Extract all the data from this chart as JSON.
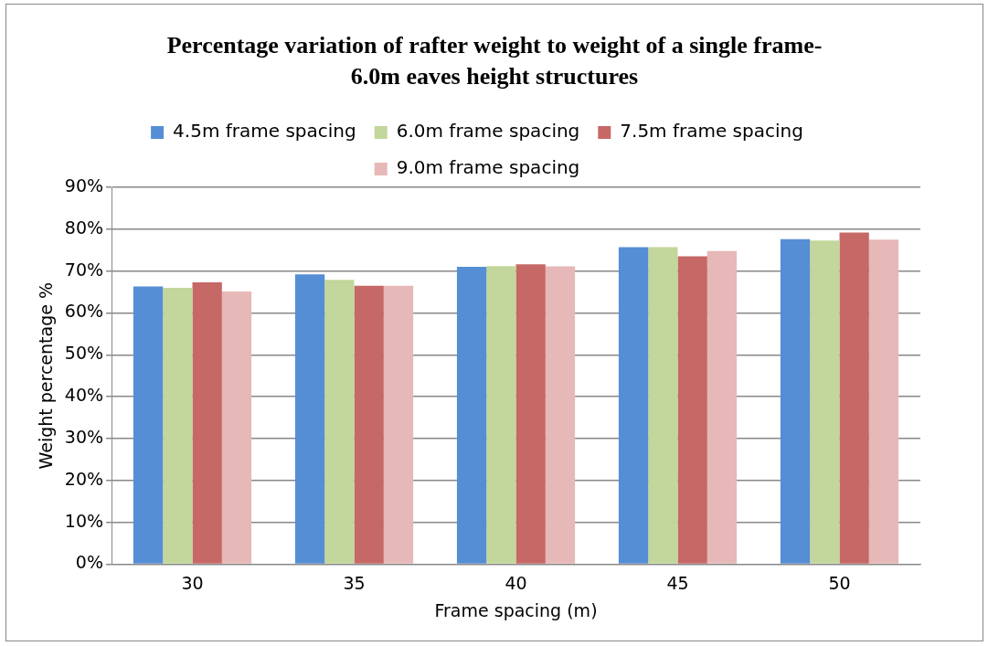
{
  "chart_data": {
    "type": "bar",
    "title": "Percentage variation of  rafter weight to weight of a single frame- 6.0m eaves height structures",
    "xlabel": "Frame spacing (m)",
    "ylabel": "Weight percentage %",
    "categories": [
      "30",
      "35",
      "40",
      "45",
      "50"
    ],
    "series": [
      {
        "name": "4.5m frame spacing",
        "color": "#558ed5",
        "values": [
          66.3,
          69.2,
          71.0,
          75.7,
          77.6
        ]
      },
      {
        "name": "6.0m frame spacing",
        "color": "#c3d69b",
        "values": [
          66.0,
          67.9,
          71.2,
          75.7,
          77.3
        ]
      },
      {
        "name": "7.5m frame spacing",
        "color": "#c66866",
        "values": [
          67.3,
          66.5,
          71.6,
          73.5,
          79.2
        ]
      },
      {
        "name": "9.0m frame spacing",
        "color": "#e6b8b7",
        "values": [
          65.1,
          66.5,
          71.1,
          74.8,
          77.5
        ]
      }
    ],
    "ylim": [
      0,
      90
    ],
    "yticks": [
      {
        "value": 0,
        "label": "0%"
      },
      {
        "value": 10,
        "label": "10%"
      },
      {
        "value": 20,
        "label": "20%"
      },
      {
        "value": 30,
        "label": "30%"
      },
      {
        "value": 40,
        "label": "40%"
      },
      {
        "value": 50,
        "label": "50%"
      },
      {
        "value": 60,
        "label": "60%"
      },
      {
        "value": 70,
        "label": "70%"
      },
      {
        "value": 80,
        "label": "80%"
      },
      {
        "value": 90,
        "label": "90%"
      }
    ],
    "grid": "y",
    "legend": "top"
  }
}
